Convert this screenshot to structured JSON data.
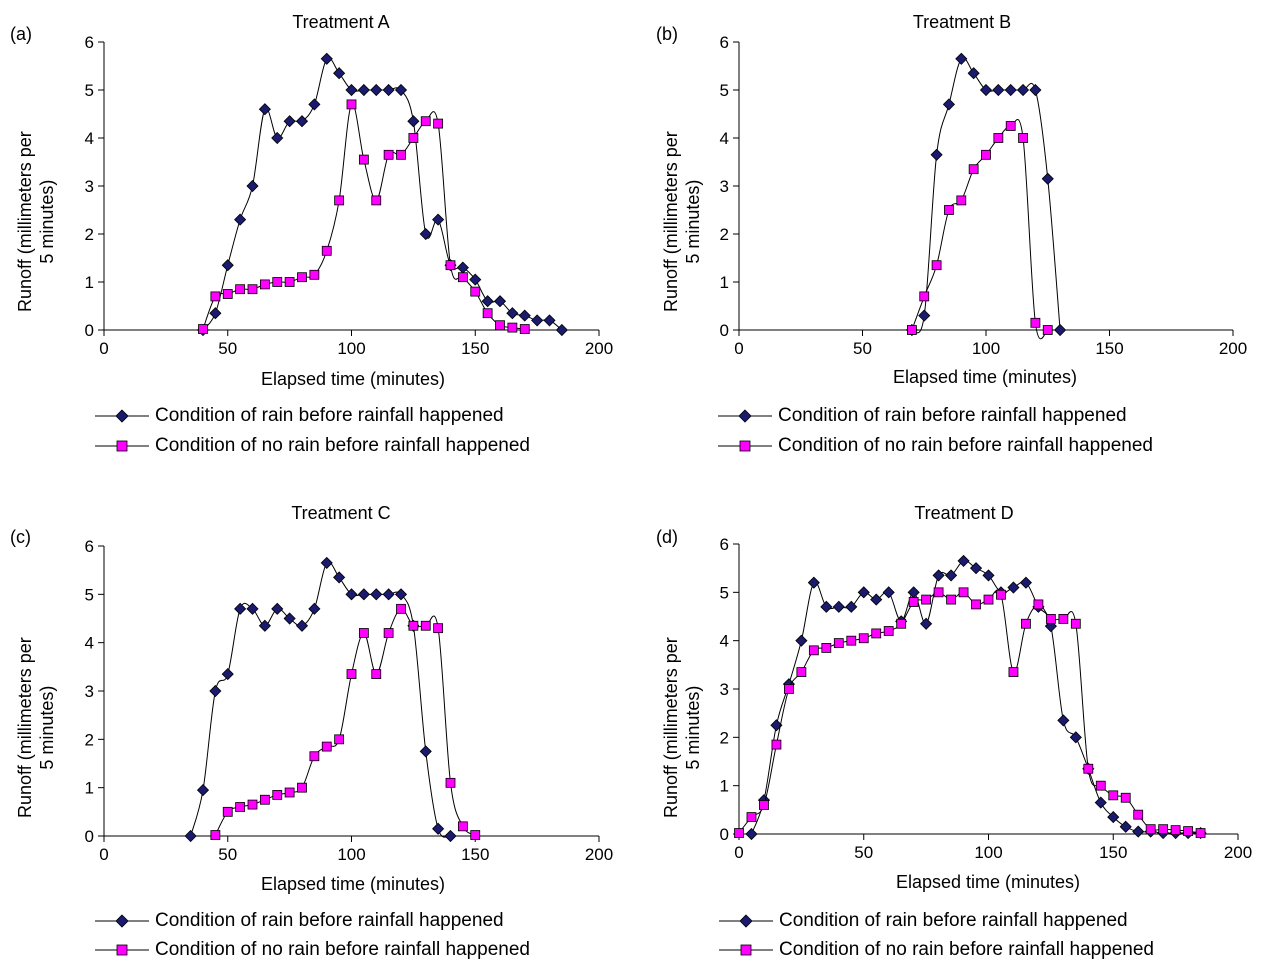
{
  "colors": {
    "rain_marker": "#1a1a6e",
    "norain_marker": "#ff00ff",
    "line": "#000000"
  },
  "chart_data": [
    {
      "type": "line",
      "panel": "(a)",
      "title": "Treatment A",
      "xlabel": "Elapsed time (minutes)",
      "ylabel_line1": "Runoff (millimeters per",
      "ylabel_line2": "5 minutes)",
      "xlim": [
        0,
        200
      ],
      "ylim": [
        0,
        6
      ],
      "xticks": [
        "0",
        "50",
        "100",
        "150",
        "200"
      ],
      "yticks": [
        "0",
        "1",
        "2",
        "3",
        "4",
        "5",
        "6"
      ],
      "series": [
        {
          "name": "Condition of rain before rainfall happened",
          "marker": "diamond",
          "x": [
            40,
            45,
            50,
            55,
            60,
            65,
            70,
            75,
            80,
            85,
            90,
            95,
            100,
            105,
            110,
            115,
            120,
            125,
            130,
            135,
            140,
            145,
            150,
            155,
            160,
            165,
            170,
            175,
            180,
            185
          ],
          "y": [
            0,
            0.35,
            1.35,
            2.3,
            3.0,
            4.6,
            4.0,
            4.35,
            4.35,
            4.7,
            5.65,
            5.35,
            5.0,
            5.0,
            5.0,
            5.0,
            5.0,
            4.35,
            2.0,
            2.3,
            1.35,
            1.3,
            1.05,
            0.6,
            0.6,
            0.35,
            0.3,
            0.2,
            0.2,
            0
          ]
        },
        {
          "name": "Condition of no rain before rainfall happened",
          "marker": "square",
          "x": [
            40,
            45,
            50,
            55,
            60,
            65,
            70,
            75,
            80,
            85,
            90,
            95,
            100,
            105,
            110,
            115,
            120,
            125,
            130,
            135,
            140,
            145,
            150,
            155,
            160,
            165,
            170
          ],
          "y": [
            0.02,
            0.7,
            0.75,
            0.85,
            0.85,
            0.95,
            1.0,
            1.0,
            1.1,
            1.15,
            1.65,
            2.7,
            4.7,
            3.55,
            2.7,
            3.65,
            3.65,
            4.0,
            4.35,
            4.3,
            1.35,
            1.1,
            0.8,
            0.35,
            0.1,
            0.05,
            0.02
          ]
        }
      ]
    },
    {
      "type": "line",
      "panel": "(b)",
      "title": "Treatment B",
      "xlabel": "Elapsed time (minutes)",
      "ylabel_line1": "Runoff (millimeters per",
      "ylabel_line2": "5 minutes)",
      "xlim": [
        0,
        200
      ],
      "ylim": [
        0,
        6
      ],
      "xticks": [
        "0",
        "50",
        "100",
        "150",
        "200"
      ],
      "yticks": [
        "0",
        "1",
        "2",
        "3",
        "4",
        "5",
        "6"
      ],
      "series": [
        {
          "name": "Condition of rain before rainfall happened",
          "marker": "diamond",
          "x": [
            70,
            75,
            80,
            85,
            90,
            95,
            100,
            105,
            110,
            115,
            120,
            125,
            130
          ],
          "y": [
            0,
            0.3,
            3.65,
            4.7,
            5.65,
            5.35,
            5.0,
            5.0,
            5.0,
            5.0,
            5.0,
            3.15,
            0
          ]
        },
        {
          "name": "Condition of no rain before rainfall happened",
          "marker": "square",
          "x": [
            70,
            75,
            80,
            85,
            90,
            95,
            100,
            105,
            110,
            115,
            120,
            125
          ],
          "y": [
            0,
            0.7,
            1.35,
            2.5,
            2.7,
            3.35,
            3.65,
            4.0,
            4.25,
            4.0,
            0.15,
            0
          ]
        }
      ]
    },
    {
      "type": "line",
      "panel": "(c)",
      "title": "Treatment C",
      "xlabel": "Elapsed time (minutes)",
      "ylabel_line1": "Runoff (millimeters per",
      "ylabel_line2": "5 minutes)",
      "xlim": [
        0,
        200
      ],
      "ylim": [
        0,
        6
      ],
      "xticks": [
        "0",
        "50",
        "100",
        "150",
        "200"
      ],
      "yticks": [
        "0",
        "1",
        "2",
        "3",
        "4",
        "5",
        "6"
      ],
      "series": [
        {
          "name": "Condition of rain before rainfall happened",
          "marker": "diamond",
          "x": [
            35,
            40,
            45,
            50,
            55,
            60,
            65,
            70,
            75,
            80,
            85,
            90,
            95,
            100,
            105,
            110,
            115,
            120,
            125,
            130,
            135,
            140
          ],
          "y": [
            0,
            0.95,
            3.0,
            3.35,
            4.7,
            4.7,
            4.35,
            4.7,
            4.5,
            4.35,
            4.7,
            5.65,
            5.35,
            5.0,
            5.0,
            5.0,
            5.0,
            5.0,
            4.35,
            1.75,
            0.15,
            0
          ]
        },
        {
          "name": "Condition of no rain before rainfall happened",
          "marker": "square",
          "x": [
            45,
            50,
            55,
            60,
            65,
            70,
            75,
            80,
            85,
            90,
            95,
            100,
            105,
            110,
            115,
            120,
            125,
            130,
            135,
            140,
            145,
            150
          ],
          "y": [
            0.02,
            0.5,
            0.6,
            0.65,
            0.75,
            0.85,
            0.9,
            1.0,
            1.65,
            1.85,
            2.0,
            3.35,
            4.2,
            3.35,
            4.2,
            4.7,
            4.35,
            4.35,
            4.3,
            1.1,
            0.2,
            0.02
          ]
        }
      ]
    },
    {
      "type": "line",
      "panel": "(d)",
      "title": "Treatment D",
      "xlabel": "Elapsed time (minutes)",
      "ylabel_line1": "Runoff (millimeters per",
      "ylabel_line2": "5 minutes)",
      "xlim": [
        0,
        200
      ],
      "ylim": [
        0,
        6
      ],
      "xticks": [
        "0",
        "50",
        "100",
        "150",
        "200"
      ],
      "yticks": [
        "0",
        "1",
        "2",
        "3",
        "4",
        "5",
        "6"
      ],
      "series": [
        {
          "name": "Condition of rain before rainfall happened",
          "marker": "diamond",
          "x": [
            5,
            10,
            15,
            20,
            25,
            30,
            35,
            40,
            45,
            50,
            55,
            60,
            65,
            70,
            75,
            80,
            85,
            90,
            95,
            100,
            105,
            110,
            115,
            120,
            125,
            130,
            135,
            140,
            145,
            150,
            155,
            160,
            165,
            170,
            175,
            180,
            185
          ],
          "y": [
            0,
            0.7,
            2.25,
            3.1,
            4.0,
            5.2,
            4.7,
            4.7,
            4.7,
            5.0,
            4.85,
            5.0,
            4.4,
            5.0,
            4.35,
            5.35,
            5.35,
            5.65,
            5.5,
            5.35,
            5.0,
            5.1,
            5.2,
            4.7,
            4.3,
            2.35,
            2.0,
            1.35,
            0.65,
            0.35,
            0.15,
            0.05,
            0.05,
            0.02,
            0.02,
            0.02,
            0.02
          ]
        },
        {
          "name": "Condition of no rain before rainfall happened",
          "marker": "square",
          "x": [
            0,
            5,
            10,
            15,
            20,
            25,
            30,
            35,
            40,
            45,
            50,
            55,
            60,
            65,
            70,
            75,
            80,
            85,
            90,
            95,
            100,
            105,
            110,
            115,
            120,
            125,
            130,
            135,
            140,
            145,
            150,
            155,
            160,
            165,
            170,
            175,
            180,
            185
          ],
          "y": [
            0.02,
            0.35,
            0.6,
            1.85,
            3.0,
            3.35,
            3.8,
            3.85,
            3.95,
            4.0,
            4.05,
            4.15,
            4.2,
            4.35,
            4.8,
            4.85,
            5.0,
            4.85,
            5.0,
            4.75,
            4.85,
            4.95,
            3.35,
            4.35,
            4.75,
            4.45,
            4.45,
            4.35,
            1.35,
            1.0,
            0.8,
            0.75,
            0.4,
            0.1,
            0.1,
            0.08,
            0.06,
            0.02
          ]
        }
      ]
    }
  ]
}
